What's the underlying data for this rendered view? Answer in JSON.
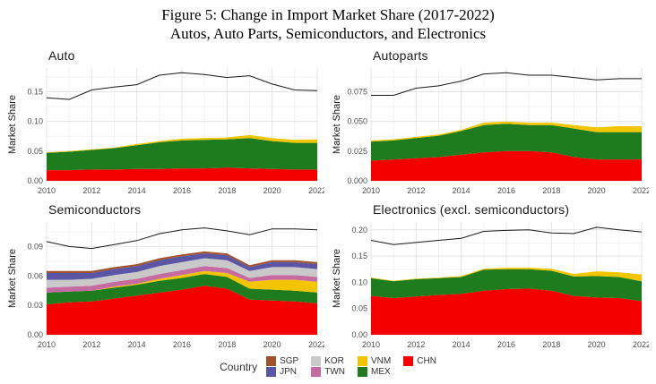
{
  "figure": {
    "title_line1": "Figure 5: Change in Import Market Share (2017-2022)",
    "title_line2": "Autos, Auto Parts, Semiconductors, and Electronics"
  },
  "legend": {
    "label": "Country",
    "columns": [
      [
        "SGP",
        "JPN"
      ],
      [
        "KOR",
        "TWN"
      ],
      [
        "VNM",
        "MEX"
      ],
      [
        "CHN"
      ]
    ]
  },
  "colors": {
    "SGP": "#A0522D",
    "JPN": "#5A55A5",
    "KOR": "#C9C9C9",
    "TWN": "#C66BA2",
    "VNM": "#F2C500",
    "MEX": "#1E7B1E",
    "CHN": "#F40000",
    "total_line": "#1A1A1A",
    "grid_major": "#E4E4E4",
    "grid_minor": "#F3F3F3"
  },
  "chart_data": [
    {
      "id": "auto",
      "type": "area",
      "title": "Auto",
      "ylabel": "Market Share",
      "x": [
        2010,
        2011,
        2012,
        2013,
        2014,
        2015,
        2016,
        2017,
        2018,
        2019,
        2020,
        2021,
        2022
      ],
      "xtick_values": [
        2010,
        2012,
        2014,
        2016,
        2018,
        2020,
        2022
      ],
      "xtick_labels": [
        "2010",
        "2012",
        "2014",
        "2016",
        "2018",
        "2020",
        "2022"
      ],
      "ytick_values": [
        0,
        0.05,
        0.1,
        0.15
      ],
      "ytick_labels": [
        "0.00",
        "0.05",
        "0.10",
        "0.15"
      ],
      "ylim": [
        0,
        0.19
      ],
      "series": [
        {
          "name": "CHN",
          "values": [
            0.018,
            0.018,
            0.019,
            0.019,
            0.02,
            0.02,
            0.021,
            0.021,
            0.022,
            0.021,
            0.02,
            0.019,
            0.019
          ]
        },
        {
          "name": "MEX",
          "values": [
            0.029,
            0.031,
            0.033,
            0.036,
            0.04,
            0.045,
            0.047,
            0.048,
            0.048,
            0.051,
            0.047,
            0.045,
            0.045
          ]
        },
        {
          "name": "VNM",
          "values": [
            0.001,
            0.001,
            0.001,
            0.001,
            0.002,
            0.002,
            0.003,
            0.003,
            0.003,
            0.005,
            0.005,
            0.005,
            0.006
          ]
        }
      ],
      "total_line": [
        0.14,
        0.137,
        0.153,
        0.158,
        0.162,
        0.178,
        0.182,
        0.179,
        0.174,
        0.177,
        0.163,
        0.153,
        0.152
      ]
    },
    {
      "id": "autoparts",
      "type": "area",
      "title": "Autoparts",
      "ylabel": "Market Share",
      "x": [
        2010,
        2011,
        2012,
        2013,
        2014,
        2015,
        2016,
        2017,
        2018,
        2019,
        2020,
        2021,
        2022
      ],
      "xtick_values": [
        2010,
        2012,
        2014,
        2016,
        2018,
        2020,
        2022
      ],
      "xtick_labels": [
        "2010",
        "2012",
        "2014",
        "2016",
        "2018",
        "2020",
        "2022"
      ],
      "ytick_values": [
        0,
        0.025,
        0.05,
        0.075
      ],
      "ytick_labels": [
        "0.000",
        "0.025",
        "0.050",
        "0.075"
      ],
      "ylim": [
        0,
        0.095
      ],
      "series": [
        {
          "name": "CHN",
          "values": [
            0.017,
            0.018,
            0.019,
            0.02,
            0.022,
            0.024,
            0.025,
            0.025,
            0.024,
            0.02,
            0.018,
            0.018,
            0.018
          ]
        },
        {
          "name": "MEX",
          "values": [
            0.016,
            0.016,
            0.017,
            0.018,
            0.02,
            0.023,
            0.023,
            0.022,
            0.023,
            0.024,
            0.023,
            0.023,
            0.023
          ]
        },
        {
          "name": "VNM",
          "values": [
            0.001,
            0.001,
            0.001,
            0.001,
            0.001,
            0.002,
            0.002,
            0.002,
            0.002,
            0.003,
            0.004,
            0.005,
            0.005
          ]
        }
      ],
      "total_line": [
        0.072,
        0.072,
        0.078,
        0.08,
        0.084,
        0.09,
        0.091,
        0.089,
        0.089,
        0.087,
        0.085,
        0.086,
        0.086
      ]
    },
    {
      "id": "semiconductors",
      "type": "area",
      "title": "Semiconductors",
      "ylabel": "Market Share",
      "x": [
        2010,
        2011,
        2012,
        2013,
        2014,
        2015,
        2016,
        2017,
        2018,
        2019,
        2020,
        2021,
        2022
      ],
      "xtick_values": [
        2010,
        2012,
        2014,
        2016,
        2018,
        2020,
        2022
      ],
      "xtick_labels": [
        "2010",
        "2012",
        "2014",
        "2016",
        "2018",
        "2020",
        "2022"
      ],
      "ytick_values": [
        0,
        0.03,
        0.06,
        0.09
      ],
      "ytick_labels": [
        "0.00",
        "0.03",
        "0.06",
        "0.09"
      ],
      "ylim": [
        0,
        0.115
      ],
      "series": [
        {
          "name": "CHN",
          "values": [
            0.031,
            0.033,
            0.034,
            0.037,
            0.04,
            0.043,
            0.046,
            0.05,
            0.047,
            0.036,
            0.035,
            0.034,
            0.032
          ]
        },
        {
          "name": "MEX",
          "values": [
            0.012,
            0.011,
            0.011,
            0.011,
            0.011,
            0.012,
            0.012,
            0.012,
            0.012,
            0.011,
            0.011,
            0.011,
            0.011
          ]
        },
        {
          "name": "VNM",
          "values": [
            0.0,
            0.0,
            0.0,
            0.001,
            0.001,
            0.002,
            0.003,
            0.003,
            0.004,
            0.007,
            0.01,
            0.011,
            0.011
          ]
        },
        {
          "name": "TWN",
          "values": [
            0.005,
            0.005,
            0.005,
            0.005,
            0.005,
            0.005,
            0.005,
            0.005,
            0.005,
            0.004,
            0.005,
            0.005,
            0.005
          ]
        },
        {
          "name": "KOR",
          "values": [
            0.008,
            0.007,
            0.007,
            0.007,
            0.007,
            0.008,
            0.008,
            0.008,
            0.008,
            0.007,
            0.008,
            0.008,
            0.008
          ]
        },
        {
          "name": "JPN",
          "values": [
            0.007,
            0.007,
            0.006,
            0.006,
            0.006,
            0.006,
            0.006,
            0.005,
            0.005,
            0.004,
            0.005,
            0.005,
            0.005
          ]
        },
        {
          "name": "SGP",
          "values": [
            0.002,
            0.002,
            0.002,
            0.002,
            0.002,
            0.002,
            0.002,
            0.002,
            0.002,
            0.002,
            0.002,
            0.002,
            0.002
          ]
        }
      ],
      "total_line": [
        0.095,
        0.09,
        0.088,
        0.092,
        0.096,
        0.103,
        0.107,
        0.109,
        0.106,
        0.102,
        0.108,
        0.108,
        0.107
      ]
    },
    {
      "id": "electronics",
      "type": "area",
      "title": "Electronics (excl. semiconductors)",
      "ylabel": "Market Share",
      "x": [
        2010,
        2011,
        2012,
        2013,
        2014,
        2015,
        2016,
        2017,
        2018,
        2019,
        2020,
        2021,
        2022
      ],
      "xtick_values": [
        2010,
        2012,
        2014,
        2016,
        2018,
        2020,
        2022
      ],
      "xtick_labels": [
        "2010",
        "2012",
        "2014",
        "2016",
        "2018",
        "2020",
        "2022"
      ],
      "ytick_values": [
        0,
        0.05,
        0.1,
        0.15,
        0.2
      ],
      "ytick_labels": [
        "0.00",
        "0.05",
        "0.10",
        "0.15",
        "0.20"
      ],
      "ylim": [
        0,
        0.215
      ],
      "series": [
        {
          "name": "CHN",
          "values": [
            0.074,
            0.07,
            0.073,
            0.076,
            0.078,
            0.084,
            0.087,
            0.088,
            0.084,
            0.074,
            0.071,
            0.07,
            0.064
          ]
        },
        {
          "name": "MEX",
          "values": [
            0.034,
            0.032,
            0.033,
            0.032,
            0.032,
            0.04,
            0.038,
            0.037,
            0.038,
            0.037,
            0.041,
            0.04,
            0.038
          ]
        },
        {
          "name": "VNM",
          "values": [
            0.001,
            0.001,
            0.001,
            0.001,
            0.002,
            0.002,
            0.003,
            0.003,
            0.004,
            0.005,
            0.009,
            0.009,
            0.013
          ]
        }
      ],
      "total_line": [
        0.18,
        0.172,
        0.176,
        0.18,
        0.184,
        0.197,
        0.199,
        0.2,
        0.194,
        0.193,
        0.205,
        0.2,
        0.196
      ]
    }
  ]
}
